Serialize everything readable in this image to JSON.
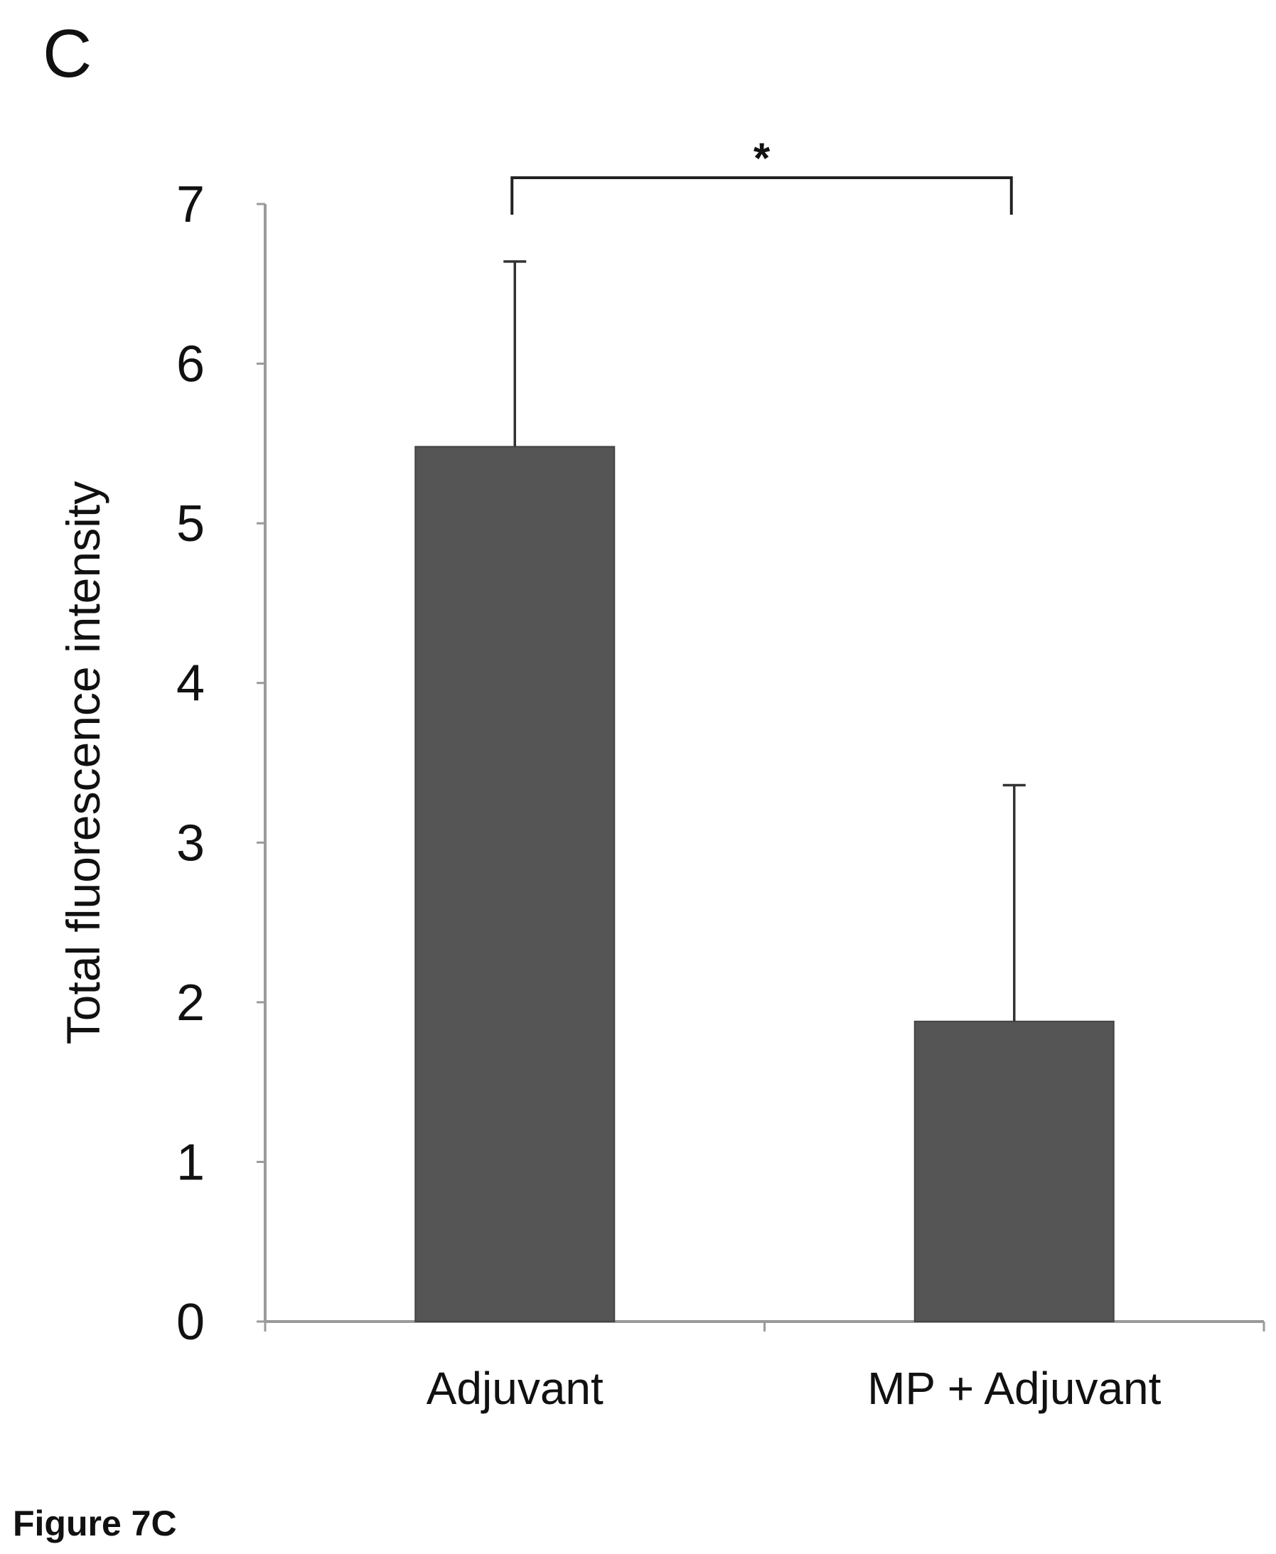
{
  "panel_label": "C",
  "figure_caption": "Figure 7C",
  "colors": {
    "bar": "#555555",
    "axis": "#9a9a9a",
    "text": "#111111"
  },
  "chart_data": {
    "type": "bar",
    "title": "",
    "xlabel": "",
    "ylabel": "Total fluorescence intensity",
    "categories": [
      "Adjuvant",
      "MP + Adjuvant"
    ],
    "values": [
      5.48,
      1.88
    ],
    "error_upper": [
      6.64,
      3.36
    ],
    "ylim": [
      0,
      7
    ],
    "yticks": [
      0,
      1,
      2,
      3,
      4,
      5,
      6,
      7
    ],
    "grid": false,
    "significance": {
      "between": [
        0,
        1
      ],
      "label": "*"
    }
  }
}
